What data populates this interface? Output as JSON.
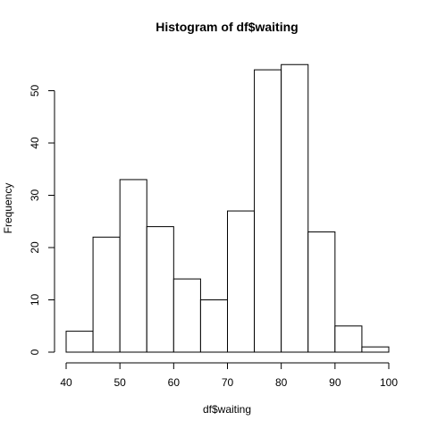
{
  "chart_data": {
    "type": "bar",
    "title": "Histogram of df$waiting",
    "xlabel": "df$waiting",
    "ylabel": "Frequency",
    "bins": [
      {
        "start": 40,
        "end": 45,
        "count": 4
      },
      {
        "start": 45,
        "end": 50,
        "count": 22
      },
      {
        "start": 50,
        "end": 55,
        "count": 33
      },
      {
        "start": 55,
        "end": 60,
        "count": 24
      },
      {
        "start": 60,
        "end": 65,
        "count": 14
      },
      {
        "start": 65,
        "end": 70,
        "count": 10
      },
      {
        "start": 70,
        "end": 75,
        "count": 27
      },
      {
        "start": 75,
        "end": 80,
        "count": 54
      },
      {
        "start": 80,
        "end": 85,
        "count": 55
      },
      {
        "start": 85,
        "end": 90,
        "count": 23
      },
      {
        "start": 90,
        "end": 95,
        "count": 5
      },
      {
        "start": 95,
        "end": 100,
        "count": 1
      }
    ],
    "xticks": [
      40,
      50,
      60,
      70,
      80,
      90,
      100
    ],
    "yticks": [
      0,
      10,
      20,
      30,
      40,
      50
    ],
    "xlim": [
      40,
      100
    ],
    "ylim": [
      0,
      55
    ],
    "grid": false,
    "colors": {
      "bar_fill": "#ffffff",
      "bar_stroke": "#000000"
    }
  }
}
